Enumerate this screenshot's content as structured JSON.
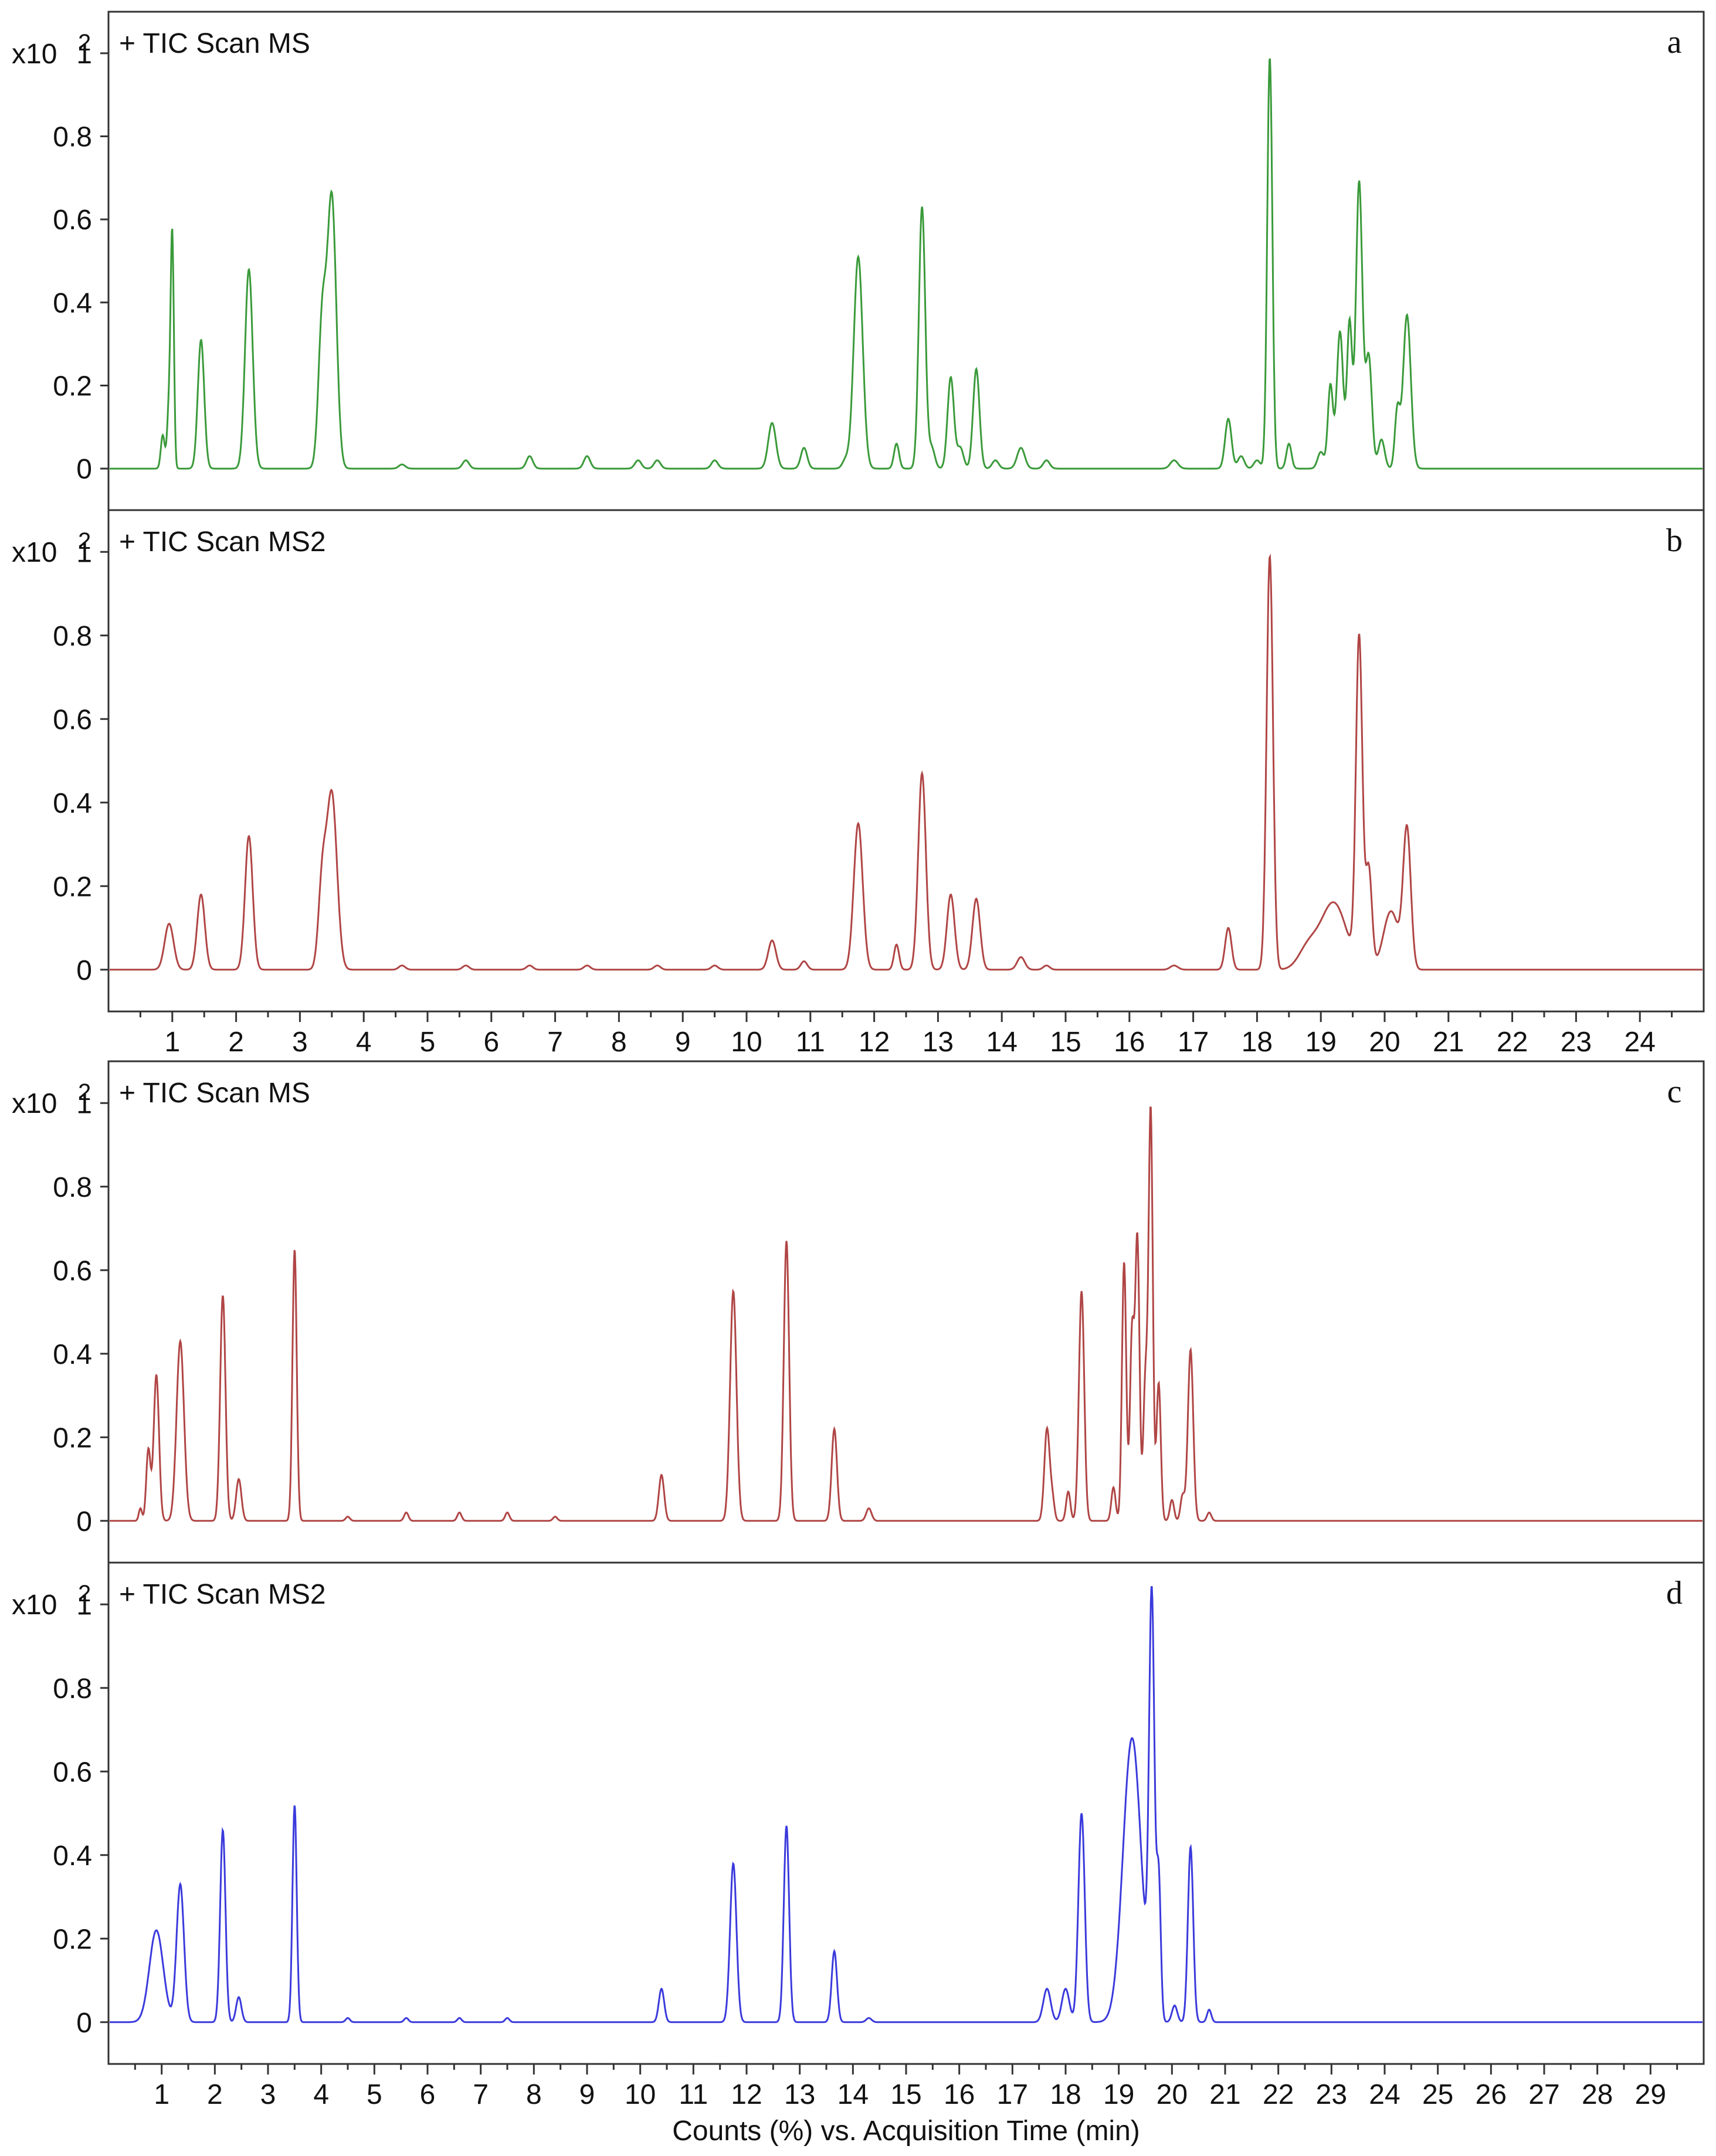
{
  "chart_data": [
    {
      "panel": "a",
      "title": "+ TIC Scan MS",
      "scale_label": "x10",
      "scale_exp": "2",
      "type": "line",
      "color": "#3a9a3a",
      "xlim": [
        0,
        25
      ],
      "ylim": [
        -0.1,
        1.1
      ],
      "y_ticks": [
        "0",
        "0.2",
        "0.4",
        "0.6",
        "0.8",
        "1"
      ],
      "x_ticks": [],
      "xlabel": "",
      "peaks": [
        [
          0.85,
          0.08,
          0.03
        ],
        [
          0.95,
          0.15,
          0.03
        ],
        [
          1.0,
          0.54,
          0.025
        ],
        [
          1.45,
          0.31,
          0.05
        ],
        [
          2.2,
          0.48,
          0.06
        ],
        [
          3.35,
          0.35,
          0.06
        ],
        [
          3.5,
          0.65,
          0.07
        ],
        [
          4.6,
          0.01,
          0.05
        ],
        [
          5.6,
          0.02,
          0.05
        ],
        [
          6.6,
          0.03,
          0.05
        ],
        [
          7.5,
          0.03,
          0.05
        ],
        [
          8.3,
          0.02,
          0.05
        ],
        [
          8.6,
          0.02,
          0.05
        ],
        [
          9.5,
          0.02,
          0.05
        ],
        [
          10.4,
          0.11,
          0.06
        ],
        [
          10.9,
          0.05,
          0.05
        ],
        [
          11.55,
          0.02,
          0.05
        ],
        [
          11.75,
          0.51,
          0.07
        ],
        [
          12.35,
          0.06,
          0.04
        ],
        [
          12.75,
          0.63,
          0.05
        ],
        [
          12.9,
          0.05,
          0.05
        ],
        [
          13.2,
          0.22,
          0.05
        ],
        [
          13.35,
          0.05,
          0.05
        ],
        [
          13.6,
          0.24,
          0.05
        ],
        [
          13.9,
          0.02,
          0.05
        ],
        [
          14.3,
          0.05,
          0.06
        ],
        [
          14.7,
          0.02,
          0.05
        ],
        [
          16.7,
          0.02,
          0.06
        ],
        [
          17.55,
          0.12,
          0.05
        ],
        [
          17.75,
          0.03,
          0.05
        ],
        [
          18.0,
          0.02,
          0.05
        ],
        [
          18.2,
          0.99,
          0.04
        ],
        [
          18.5,
          0.06,
          0.04
        ],
        [
          19.0,
          0.04,
          0.05
        ],
        [
          19.15,
          0.2,
          0.04
        ],
        [
          19.3,
          0.33,
          0.05
        ],
        [
          19.45,
          0.35,
          0.04
        ],
        [
          19.6,
          0.69,
          0.05
        ],
        [
          19.75,
          0.27,
          0.05
        ],
        [
          19.95,
          0.07,
          0.05
        ],
        [
          20.2,
          0.14,
          0.04
        ],
        [
          20.35,
          0.37,
          0.06
        ]
      ]
    },
    {
      "panel": "b",
      "title": "+ TIC Scan MS2",
      "scale_label": "x10",
      "scale_exp": "2",
      "type": "line",
      "color": "#b04545",
      "xlim": [
        0,
        25
      ],
      "ylim": [
        -0.1,
        1.1
      ],
      "y_ticks": [
        "0",
        "0.2",
        "0.4",
        "0.6",
        "0.8",
        "1"
      ],
      "x_ticks": [
        "1",
        "2",
        "3",
        "4",
        "5",
        "6",
        "7",
        "8",
        "9",
        "10",
        "11",
        "12",
        "13",
        "14",
        "15",
        "16",
        "17",
        "18",
        "19",
        "20",
        "21",
        "22",
        "23",
        "24"
      ],
      "xlabel": "",
      "peaks": [
        [
          0.95,
          0.11,
          0.07
        ],
        [
          1.45,
          0.18,
          0.06
        ],
        [
          2.2,
          0.32,
          0.06
        ],
        [
          3.35,
          0.2,
          0.06
        ],
        [
          3.5,
          0.42,
          0.08
        ],
        [
          4.6,
          0.01,
          0.05
        ],
        [
          5.6,
          0.01,
          0.05
        ],
        [
          6.6,
          0.01,
          0.05
        ],
        [
          7.5,
          0.01,
          0.05
        ],
        [
          8.6,
          0.01,
          0.05
        ],
        [
          9.5,
          0.01,
          0.05
        ],
        [
          10.4,
          0.07,
          0.06
        ],
        [
          10.9,
          0.02,
          0.05
        ],
        [
          11.75,
          0.35,
          0.07
        ],
        [
          12.35,
          0.06,
          0.04
        ],
        [
          12.75,
          0.47,
          0.06
        ],
        [
          13.2,
          0.18,
          0.06
        ],
        [
          13.6,
          0.17,
          0.06
        ],
        [
          14.3,
          0.03,
          0.06
        ],
        [
          14.7,
          0.01,
          0.05
        ],
        [
          16.7,
          0.01,
          0.06
        ],
        [
          17.55,
          0.1,
          0.05
        ],
        [
          18.2,
          0.99,
          0.05
        ],
        [
          18.8,
          0.05,
          0.15
        ],
        [
          19.2,
          0.16,
          0.2
        ],
        [
          19.6,
          0.78,
          0.05
        ],
        [
          19.75,
          0.24,
          0.05
        ],
        [
          20.1,
          0.14,
          0.12
        ],
        [
          20.35,
          0.33,
          0.06
        ]
      ]
    },
    {
      "panel": "c",
      "title": "+ TIC Scan MS",
      "scale_label": "x10",
      "scale_exp": "2",
      "type": "line",
      "color": "#b04545",
      "xlim": [
        0,
        30
      ],
      "ylim": [
        -0.1,
        1.1
      ],
      "y_ticks": [
        "0",
        "0.2",
        "0.4",
        "0.6",
        "0.8",
        "1"
      ],
      "x_ticks": [],
      "xlabel": "",
      "peaks": [
        [
          0.6,
          0.03,
          0.03
        ],
        [
          0.75,
          0.17,
          0.04
        ],
        [
          0.9,
          0.35,
          0.05
        ],
        [
          1.35,
          0.43,
          0.07
        ],
        [
          2.15,
          0.54,
          0.05
        ],
        [
          2.45,
          0.1,
          0.05
        ],
        [
          3.5,
          0.65,
          0.04
        ],
        [
          4.5,
          0.01,
          0.04
        ],
        [
          5.6,
          0.02,
          0.04
        ],
        [
          6.6,
          0.02,
          0.04
        ],
        [
          7.5,
          0.02,
          0.04
        ],
        [
          8.4,
          0.01,
          0.04
        ],
        [
          10.4,
          0.11,
          0.05
        ],
        [
          11.75,
          0.55,
          0.06
        ],
        [
          12.75,
          0.67,
          0.05
        ],
        [
          13.65,
          0.22,
          0.05
        ],
        [
          14.3,
          0.03,
          0.05
        ],
        [
          17.65,
          0.22,
          0.05
        ],
        [
          17.75,
          0.05,
          0.04
        ],
        [
          18.05,
          0.07,
          0.04
        ],
        [
          18.3,
          0.55,
          0.05
        ],
        [
          18.9,
          0.08,
          0.04
        ],
        [
          19.1,
          0.62,
          0.04
        ],
        [
          19.25,
          0.45,
          0.04
        ],
        [
          19.35,
          0.67,
          0.04
        ],
        [
          19.5,
          0.33,
          0.04
        ],
        [
          19.6,
          0.98,
          0.04
        ],
        [
          19.75,
          0.33,
          0.04
        ],
        [
          20.0,
          0.05,
          0.04
        ],
        [
          20.2,
          0.06,
          0.04
        ],
        [
          20.35,
          0.41,
          0.05
        ],
        [
          20.7,
          0.02,
          0.04
        ]
      ]
    },
    {
      "panel": "d",
      "title": "+ TIC Scan MS2",
      "scale_label": "x10",
      "scale_exp": "2",
      "type": "line",
      "color": "#3a3adc",
      "xlim": [
        0,
        30
      ],
      "ylim": [
        -0.1,
        1.1
      ],
      "y_ticks": [
        "0",
        "0.2",
        "0.4",
        "0.6",
        "0.8",
        "1"
      ],
      "x_ticks": [
        "1",
        "2",
        "3",
        "4",
        "5",
        "6",
        "7",
        "8",
        "9",
        "10",
        "11",
        "12",
        "13",
        "14",
        "15",
        "16",
        "17",
        "18",
        "19",
        "20",
        "21",
        "22",
        "23",
        "24",
        "25",
        "26",
        "27",
        "28",
        "29"
      ],
      "xlabel": "Counts (%) vs. Acquisition Time (min)",
      "peaks": [
        [
          0.9,
          0.22,
          0.13
        ],
        [
          1.35,
          0.33,
          0.07
        ],
        [
          2.15,
          0.46,
          0.05
        ],
        [
          2.45,
          0.06,
          0.05
        ],
        [
          3.5,
          0.52,
          0.04
        ],
        [
          4.5,
          0.01,
          0.04
        ],
        [
          5.6,
          0.01,
          0.04
        ],
        [
          6.6,
          0.01,
          0.04
        ],
        [
          7.5,
          0.01,
          0.04
        ],
        [
          10.4,
          0.08,
          0.05
        ],
        [
          11.75,
          0.38,
          0.06
        ],
        [
          12.75,
          0.47,
          0.05
        ],
        [
          13.65,
          0.17,
          0.05
        ],
        [
          14.3,
          0.01,
          0.05
        ],
        [
          17.65,
          0.08,
          0.07
        ],
        [
          18.0,
          0.08,
          0.07
        ],
        [
          18.3,
          0.5,
          0.06
        ],
        [
          19.25,
          0.68,
          0.17
        ],
        [
          19.62,
          0.98,
          0.05
        ],
        [
          19.75,
          0.34,
          0.04
        ],
        [
          20.05,
          0.04,
          0.05
        ],
        [
          20.35,
          0.42,
          0.05
        ],
        [
          20.7,
          0.03,
          0.04
        ]
      ]
    }
  ]
}
